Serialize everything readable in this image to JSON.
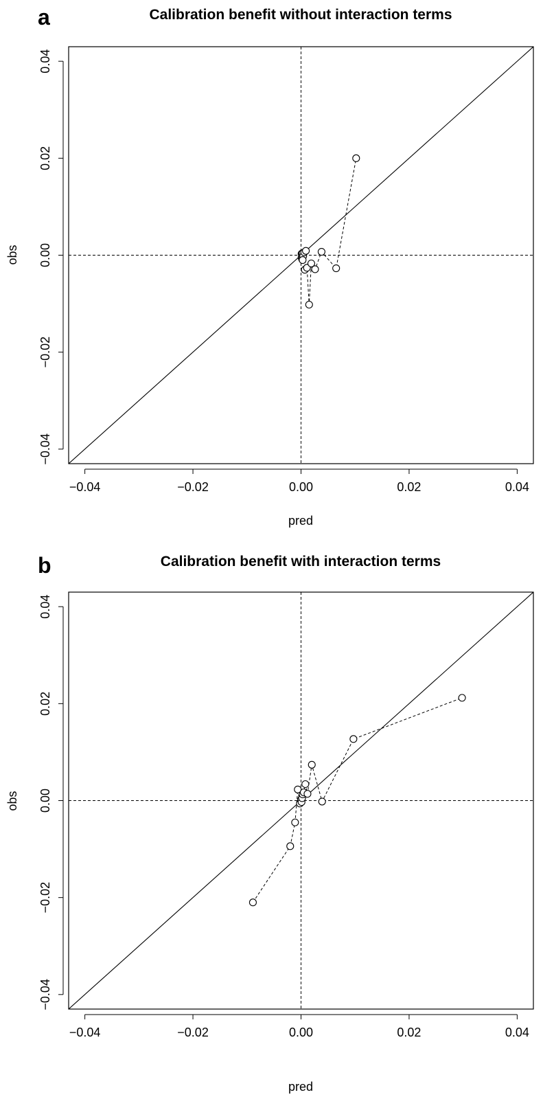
{
  "chart_data": [
    {
      "panel_label": "a",
      "type": "scatter",
      "title": "Calibration benefit without interaction terms",
      "xlabel": "pred",
      "ylabel": "obs",
      "xlim": [
        -0.043,
        0.043
      ],
      "ylim": [
        -0.043,
        0.043
      ],
      "xticks": [
        -0.04,
        -0.02,
        0.0,
        0.02,
        0.04
      ],
      "xtick_labels": [
        "−0.04",
        "−0.02",
        "0.00",
        "0.02",
        "0.04"
      ],
      "yticks": [
        -0.04,
        -0.02,
        0.0,
        0.02,
        0.04
      ],
      "ytick_labels": [
        "−0.04",
        "−0.02",
        "0.00",
        "0.02",
        "0.04"
      ],
      "reference_lines": [
        "identity",
        "x=0 dashed",
        "y=0 dashed"
      ],
      "grid": false,
      "series": [
        {
          "points": [
            [
              0.0001,
              0.0003
            ],
            [
              0.0001,
              -0.0005
            ],
            [
              0.0002,
              0.0001
            ],
            [
              0.0002,
              -0.0008
            ],
            [
              0.0003,
              0.0004
            ],
            [
              0.0004,
              -0.0002
            ],
            [
              0.0003,
              -0.001
            ],
            [
              0.0006,
              0.0006
            ],
            [
              0.0009,
              0.0009
            ],
            [
              0.0007,
              -0.003
            ],
            [
              0.0011,
              -0.0026
            ],
            [
              0.0015,
              -0.0102
            ],
            [
              0.0019,
              -0.0017
            ],
            [
              0.0026,
              -0.0029
            ],
            [
              0.0038,
              0.0007
            ],
            [
              0.0065,
              -0.0027
            ],
            [
              0.0102,
              0.02
            ]
          ]
        }
      ]
    },
    {
      "panel_label": "b",
      "type": "scatter",
      "title": "Calibration benefit with interaction terms",
      "xlabel": "pred",
      "ylabel": "obs",
      "xlim": [
        -0.043,
        0.043
      ],
      "ylim": [
        -0.043,
        0.043
      ],
      "xticks": [
        -0.04,
        -0.02,
        0.0,
        0.02,
        0.04
      ],
      "xtick_labels": [
        "−0.04",
        "−0.02",
        "0.00",
        "0.02",
        "0.04"
      ],
      "yticks": [
        -0.04,
        -0.02,
        0.0,
        0.02,
        0.04
      ],
      "ytick_labels": [
        "−0.04",
        "−0.02",
        "0.00",
        "0.02",
        "0.04"
      ],
      "reference_lines": [
        "identity",
        "x=0 dashed",
        "y=0 dashed"
      ],
      "grid": false,
      "series": [
        {
          "points": [
            [
              -0.0089,
              -0.021
            ],
            [
              -0.002,
              -0.0094
            ],
            [
              -0.0011,
              -0.0045
            ],
            [
              -0.0006,
              0.0023
            ],
            [
              -0.0002,
              -0.0006
            ],
            [
              0.0,
              0.0002
            ],
            [
              0.0001,
              -0.0003
            ],
            [
              0.0002,
              0.0005
            ],
            [
              0.0003,
              0.0013
            ],
            [
              0.0005,
              0.0017
            ],
            [
              0.0008,
              0.0034
            ],
            [
              0.0012,
              0.0014
            ],
            [
              0.002,
              0.0074
            ],
            [
              0.0039,
              -0.0002
            ],
            [
              0.0097,
              0.0127
            ],
            [
              0.0298,
              0.0212
            ]
          ]
        }
      ]
    }
  ]
}
